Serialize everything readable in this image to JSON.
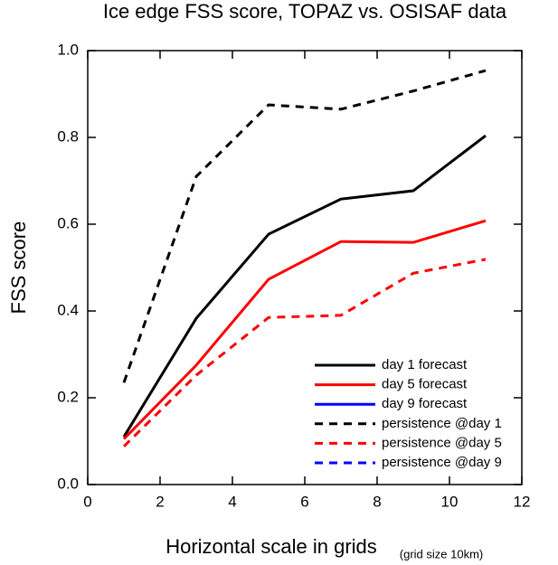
{
  "chart_data": {
    "type": "line",
    "title": "Ice edge FSS score, TOPAZ vs. OSISAF data",
    "xlabel": "Horizontal scale in grids",
    "xlabel_note": "(grid size 10km)",
    "ylabel": "FSS score",
    "x": [
      1,
      3,
      5,
      7,
      9,
      11
    ],
    "xlim": [
      0,
      12
    ],
    "xticks": [
      0,
      2,
      4,
      6,
      8,
      10,
      12
    ],
    "ylim": [
      0,
      1
    ],
    "yticks": [
      {
        "value": 0,
        "label": "0.0"
      },
      {
        "value": 0.2,
        "label": "0.2"
      },
      {
        "value": 0.4,
        "label": "0.4"
      },
      {
        "value": 0.6,
        "label": "0.6"
      },
      {
        "value": 0.8,
        "label": "0.8"
      },
      {
        "value": 1,
        "label": "1.0"
      }
    ],
    "grid": false,
    "legend": "lower right",
    "series": [
      {
        "name": "day 1 forecast",
        "color": "#000000",
        "dash": false,
        "values": [
          0.11,
          0.383,
          0.577,
          0.658,
          0.677,
          0.804
        ]
      },
      {
        "name": "day 5 forecast",
        "color": "#ff0000",
        "dash": false,
        "values": [
          0.105,
          0.275,
          0.473,
          0.56,
          0.558,
          0.608
        ]
      },
      {
        "name": "day 9 forecast",
        "color": "#0000ff",
        "dash": false,
        "values": [
          null,
          null,
          null,
          null,
          null,
          null
        ]
      },
      {
        "name": "persistence @day 1",
        "color": "#000000",
        "dash": true,
        "values": [
          0.235,
          0.71,
          0.875,
          0.865,
          0.907,
          0.954
        ]
      },
      {
        "name": "persistence @day 5",
        "color": "#ff0000",
        "dash": true,
        "values": [
          0.088,
          0.252,
          0.385,
          0.39,
          0.487,
          0.519
        ]
      },
      {
        "name": "persistence @day 9",
        "color": "#0000ff",
        "dash": true,
        "values": [
          null,
          null,
          null,
          null,
          null,
          null
        ]
      }
    ]
  }
}
